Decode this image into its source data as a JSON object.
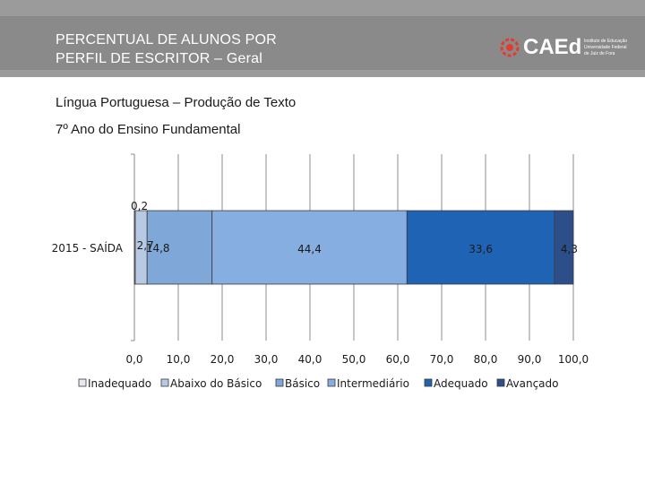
{
  "header": {
    "title_line1": "PERCENTUAL DE ALUNOS POR",
    "title_line2": "PERFIL DE ESCRITOR – Geral",
    "logo_text": "CAEd",
    "logo_sub": "Instituto de Educação Universidade Federal de Juiz de Fora"
  },
  "subtitle1": "Língua Portuguesa – Produção de Texto",
  "subtitle2": "7º Ano do Ensino Fundamental",
  "colors": {
    "header_bg": "#9b9b9b",
    "Inadequado": "#e8e8ee",
    "Abaixo do Básico": "#b8c9e4",
    "Básico": "#7fa7d8",
    "Intermediário": "#86aee0",
    "Adequado": "#1f63b5",
    "Avançado": "#2c4f8a"
  },
  "chart_data": {
    "type": "bar",
    "orientation": "horizontal",
    "stacked": true,
    "categories": [
      "2015 - SAÍDA"
    ],
    "series": [
      {
        "name": "Inadequado",
        "values": [
          0.2
        ],
        "label": "0,2"
      },
      {
        "name": "Abaixo do Básico",
        "values": [
          2.7
        ],
        "label": "2,7"
      },
      {
        "name": "Básico",
        "values": [
          14.8
        ],
        "label": "14,8"
      },
      {
        "name": "Intermediário",
        "values": [
          44.4
        ],
        "label": "44,4"
      },
      {
        "name": "Adequado",
        "values": [
          33.6
        ],
        "label": "33,6"
      },
      {
        "name": "Avançado",
        "values": [
          4.3
        ],
        "label": "4,3"
      }
    ],
    "xlim": [
      0,
      100
    ],
    "xticks": [
      "0,0",
      "10,0",
      "20,0",
      "30,0",
      "40,0",
      "50,0",
      "60,0",
      "70,0",
      "80,0",
      "90,0",
      "100,0"
    ],
    "grid": true,
    "legend": "bottom"
  }
}
